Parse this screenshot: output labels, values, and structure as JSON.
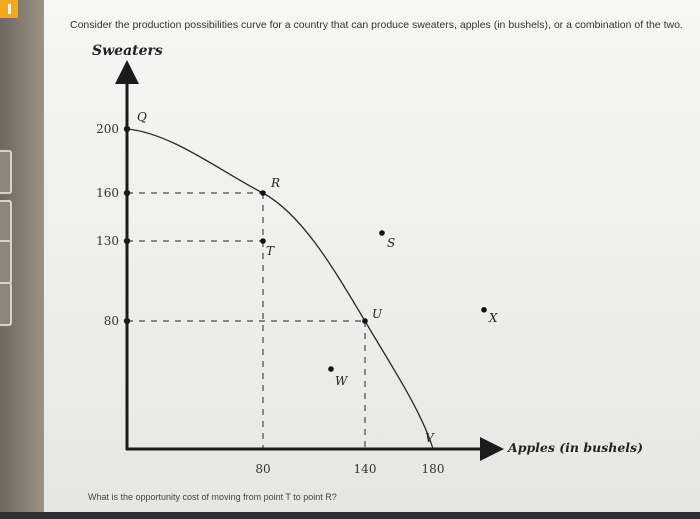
{
  "question": "Consider the production possibilities curve for a country that can produce sweaters, apples (in bushels), or a combination of the two.",
  "footer_question": "What is the opportunity cost of moving from point T to point R?",
  "colors": {
    "axis": "#1b1b1b",
    "curve": "#2a2a2a",
    "guide": "#4a4a4a",
    "text": "#333333"
  },
  "chart_data": {
    "type": "line",
    "ylabel": "Sweaters",
    "xlabel": "Apples (in bushels)",
    "xlim": [
      0,
      215
    ],
    "ylim": [
      0,
      220
    ],
    "x_ticks": [
      80,
      140,
      180
    ],
    "y_ticks": [
      80,
      130,
      160,
      200
    ],
    "series": [
      {
        "values": [
          [
            0,
            200
          ],
          [
            80,
            160
          ],
          [
            140,
            80
          ],
          [
            180,
            0
          ]
        ]
      }
    ],
    "points": [
      {
        "label": "Q",
        "x": 0,
        "y": 200
      },
      {
        "label": "R",
        "x": 80,
        "y": 160
      },
      {
        "label": "T",
        "x": 80,
        "y": 130
      },
      {
        "label": "U",
        "x": 140,
        "y": 80
      },
      {
        "label": "V",
        "x": 180,
        "y": 0
      },
      {
        "label": "S",
        "x": 150,
        "y": 135
      },
      {
        "label": "W",
        "x": 120,
        "y": 50
      },
      {
        "label": "X",
        "x": 210,
        "y": 87
      }
    ],
    "grid": false,
    "legend": "none"
  }
}
